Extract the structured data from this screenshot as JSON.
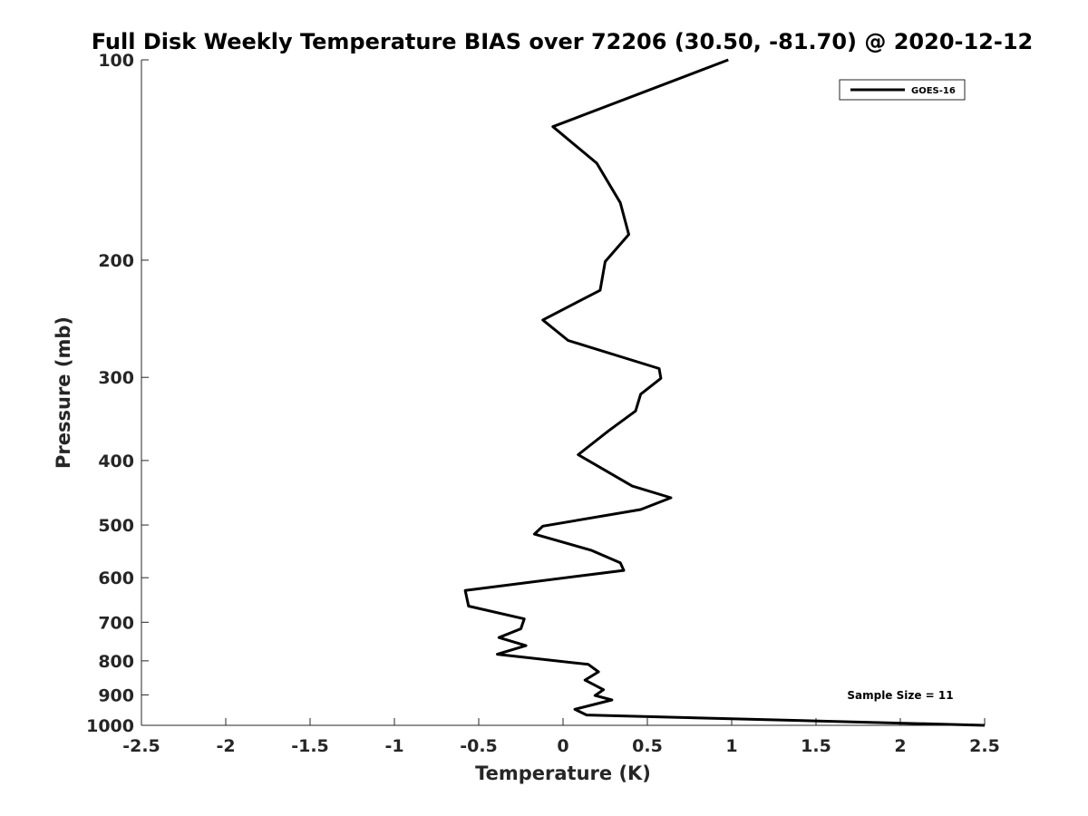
{
  "chart_data": {
    "type": "line",
    "title": "Full Disk Weekly Temperature BIAS over 72206 (30.50, -81.70) @ 2020-12-12",
    "xlabel": "Temperature (K)",
    "ylabel": "Pressure (mb)",
    "xlim": [
      -2.5,
      2.5
    ],
    "ylim": [
      100,
      1000
    ],
    "y_scale": "log",
    "y_reversed": true,
    "x_ticks": [
      -2.5,
      -2,
      -1.5,
      -1,
      -0.5,
      0,
      0.5,
      1,
      1.5,
      2,
      2.5
    ],
    "x_tick_labels": [
      "-2.5",
      "-2",
      "-1.5",
      "-1",
      "-0.5",
      "0",
      "0.5",
      "1",
      "1.5",
      "2",
      "2.5"
    ],
    "y_ticks": [
      100,
      200,
      300,
      400,
      500,
      600,
      700,
      800,
      900,
      1000
    ],
    "y_tick_labels": [
      "100",
      "200",
      "300",
      "400",
      "500",
      "600",
      "700",
      "800",
      "900",
      "1000"
    ],
    "grid": false,
    "legend_position": "top-right",
    "annotation": "Sample Size = 11",
    "series": [
      {
        "name": "GOES-16",
        "color": "#000000",
        "points": [
          [
            0.98,
            100
          ],
          [
            -0.06,
            126
          ],
          [
            0.2,
            143
          ],
          [
            0.34,
            164
          ],
          [
            0.39,
            183
          ],
          [
            0.25,
            201
          ],
          [
            0.22,
            222
          ],
          [
            -0.12,
            246
          ],
          [
            0.03,
            264
          ],
          [
            0.57,
            291
          ],
          [
            0.58,
            301
          ],
          [
            0.46,
            318
          ],
          [
            0.43,
            337
          ],
          [
            0.27,
            361
          ],
          [
            0.09,
            392
          ],
          [
            0.41,
            437
          ],
          [
            0.64,
            455
          ],
          [
            0.46,
            474
          ],
          [
            -0.12,
            502
          ],
          [
            -0.17,
            516
          ],
          [
            0.17,
            546
          ],
          [
            0.34,
            570
          ],
          [
            0.36,
            585
          ],
          [
            -0.58,
            627
          ],
          [
            -0.56,
            662
          ],
          [
            -0.23,
            692
          ],
          [
            -0.25,
            716
          ],
          [
            -0.38,
            738
          ],
          [
            -0.22,
            759
          ],
          [
            -0.39,
            782
          ],
          [
            0.15,
            810
          ],
          [
            0.21,
            831
          ],
          [
            0.13,
            855
          ],
          [
            0.24,
            884
          ],
          [
            0.19,
            902
          ],
          [
            0.29,
            916
          ],
          [
            0.07,
            946
          ],
          [
            0.14,
            965
          ],
          [
            2.5,
            1000
          ]
        ]
      }
    ]
  }
}
